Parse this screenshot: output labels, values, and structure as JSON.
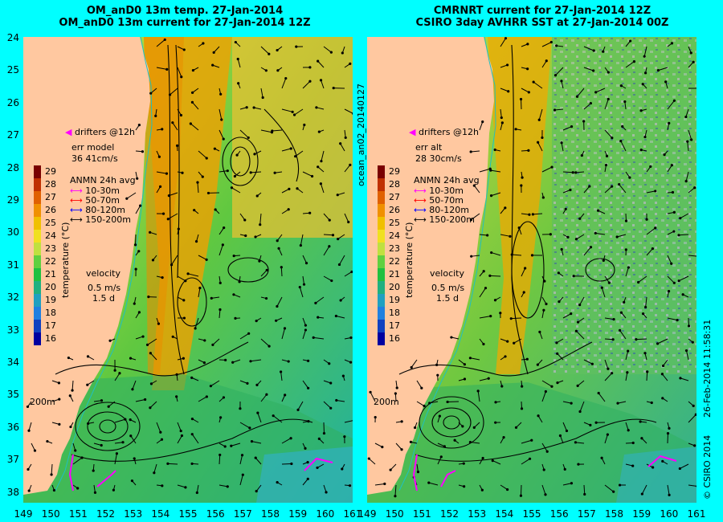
{
  "titles": {
    "left_line1": "OM_anD0 13m temp. 27-Jan-2014",
    "left_line2": "OM_anD0 13m current for 27-Jan-2014 12Z",
    "right_line1": "CMRNRT current for 27-Jan-2014 12Z",
    "right_line2": "CSIRO 3day AVHRR SST at 27-Jan-2014 00Z"
  },
  "latitudes": [
    "24",
    "25",
    "26",
    "27",
    "28",
    "29",
    "30",
    "31",
    "32",
    "33",
    "34",
    "35",
    "36",
    "37",
    "38"
  ],
  "longitudes_left": [
    "149",
    "150",
    "151",
    "152",
    "153",
    "154",
    "155",
    "156",
    "157",
    "158",
    "159",
    "160",
    "161"
  ],
  "longitudes_right": [
    "149",
    "150",
    "151",
    "152",
    "153",
    "154",
    "155",
    "156",
    "157",
    "158",
    "159",
    "160",
    "161"
  ],
  "left_panel": {
    "drifters_label": "drifters @12h",
    "err_label": "err model",
    "err_values": "36 41cm/s",
    "legend_title": "ANMN 24h avg",
    "legend_items": [
      {
        "label": "10-30m",
        "color": "#ff00ff"
      },
      {
        "label": "50-70m",
        "color": "#ff0000"
      },
      {
        "label": "80-120m",
        "color": "#0000ff"
      },
      {
        "label": "150-200m",
        "color": "#000000"
      }
    ],
    "velocity_label": "velocity",
    "velocity_scale": "0.5 m/s",
    "velocity_days": "1.5 d",
    "isobath_label": "200m"
  },
  "right_panel": {
    "drifters_label": "drifters @12h",
    "err_label": "err alt",
    "err_values": "28 30cm/s",
    "legend_title": "ANMN 24h avg",
    "legend_items": [
      {
        "label": "10-30m",
        "color": "#ff00ff"
      },
      {
        "label": "50-70m",
        "color": "#ff0000"
      },
      {
        "label": "80-120m",
        "color": "#0000ff"
      },
      {
        "label": "150-200m",
        "color": "#000000"
      }
    ],
    "velocity_label": "velocity",
    "velocity_scale": "0.5 m/s",
    "velocity_days": "1.5 d",
    "isobath_label": "200m"
  },
  "colorbar": {
    "label": "temperature (°C)",
    "ticks": [
      "29",
      "28",
      "27",
      "26",
      "25",
      "24",
      "23",
      "22",
      "21",
      "20",
      "19",
      "18",
      "17",
      "16"
    ],
    "colors": [
      "#7a0000",
      "#c03000",
      "#e06000",
      "#f09000",
      "#f0c000",
      "#f0e020",
      "#c0e040",
      "#60d040",
      "#20c040",
      "#20b080",
      "#20a0c0",
      "#2080e0",
      "#1040c0",
      "#0000a0"
    ]
  },
  "side_texts": {
    "center": "ocean_an02_20140127",
    "right_top": "26-Feb-2014 11:58:31",
    "right_bottom": "© CSIRO 2014"
  }
}
